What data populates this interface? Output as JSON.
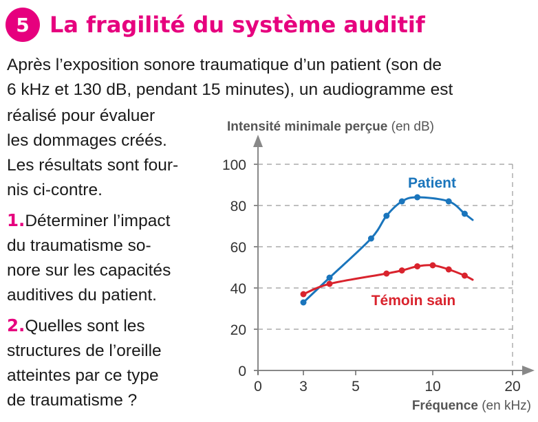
{
  "header": {
    "number": "5",
    "title": "La fragilité du système auditif"
  },
  "intro": {
    "line1": "Après l’exposition sonore traumatique d’un patient (son de",
    "line2": "6 kHz et 130 dB, pendant 15 minutes), un audiogramme est"
  },
  "text": {
    "lines": [
      "réalisé pour évaluer",
      "les dommages créés.",
      "Les résultats sont four-",
      "nis ci-contre."
    ],
    "q1": {
      "num": "1.",
      "lines": [
        "Déterminer l’impact",
        "du traumatisme so-",
        "nore sur les capacités",
        "auditives du patient."
      ]
    },
    "q2": {
      "num": "2.",
      "lines": [
        "Quelles sont les",
        "structures de l’oreille",
        "atteintes par ce type",
        "de traumatisme ?"
      ]
    }
  },
  "chart_data": {
    "type": "line",
    "ylabel": "Intensité minimale perçue",
    "ylabel_unit": "(en dB)",
    "xlabel": "Fréquence",
    "xlabel_unit": "(en kHz)",
    "x_ticks": [
      0,
      3,
      5,
      10,
      20
    ],
    "y_ticks": [
      0,
      20,
      40,
      60,
      80,
      100
    ],
    "ylim": [
      0,
      100
    ],
    "grid": true,
    "series": [
      {
        "name": "Patient",
        "color": "#1a75bc",
        "x": [
          3,
          4,
          6,
          7,
          8,
          9,
          12,
          14
        ],
        "y": [
          33,
          45,
          64,
          75,
          82,
          84,
          82,
          76
        ],
        "curve_end": [
          15,
          73
        ]
      },
      {
        "name": "Témoin sain",
        "color": "#d9232d",
        "x": [
          3,
          4,
          7,
          8,
          9,
          10,
          12,
          14
        ],
        "y": [
          37,
          42,
          47,
          48.5,
          50.5,
          51,
          49,
          46
        ],
        "curve_end": [
          15,
          44
        ]
      }
    ]
  }
}
